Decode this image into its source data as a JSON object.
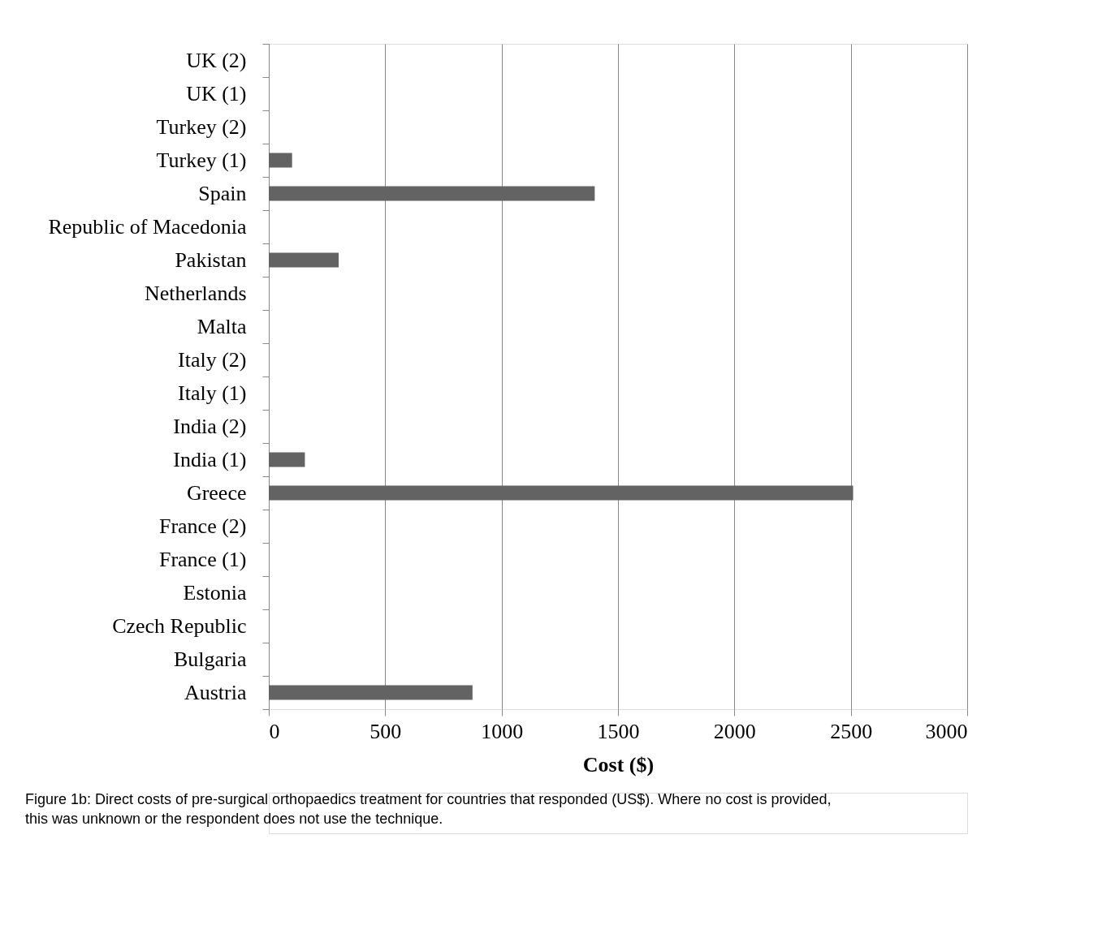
{
  "chart_data": {
    "type": "bar",
    "orientation": "horizontal",
    "xlabel": "Cost ($)",
    "categories": [
      "UK (2)",
      "UK (1)",
      "Turkey (2)",
      "Turkey (1)",
      "Spain",
      "Republic of Macedonia",
      "Pakistan",
      "Netherlands",
      "Malta",
      "Italy (2)",
      "Italy (1)",
      "India (2)",
      "India (1)",
      "Greece",
      "France (2)",
      "France (1)",
      "Estonia",
      "Czech Republic",
      "Bulgaria",
      "Austria"
    ],
    "values": [
      null,
      null,
      null,
      100,
      1400,
      null,
      300,
      null,
      null,
      null,
      null,
      null,
      155,
      2510,
      null,
      null,
      null,
      null,
      null,
      875
    ],
    "color": "#636363",
    "xlim": [
      0,
      3000
    ],
    "xticks": [
      0,
      500,
      1000,
      1500,
      2000,
      2500,
      3000
    ],
    "grid": "x",
    "annotations": [
      "Figure 1b: Direct costs of pre-surgical orthopaedics treatment for countries that responded (US$). Where no cost is provided,",
      "this was unknown or the respondent does not use the technique."
    ]
  }
}
